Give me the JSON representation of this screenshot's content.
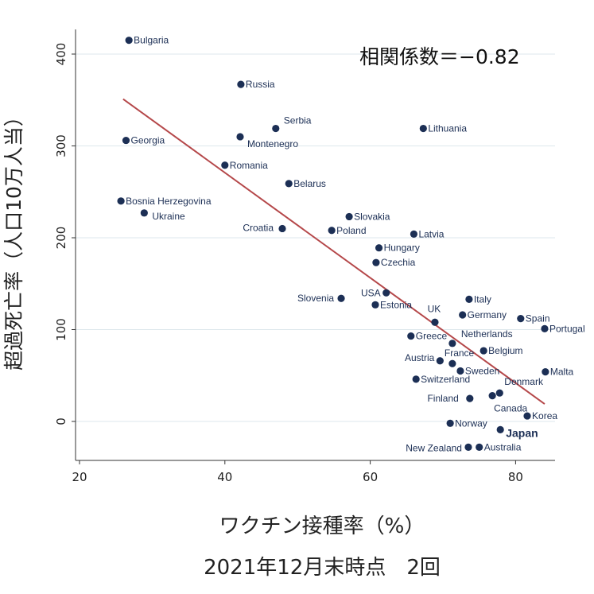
{
  "chart_data": {
    "type": "scatter",
    "annotation": "相関係数＝−0.82",
    "xlabel": "ワクチン接種率（%）",
    "xlabel_line2": "2021年12月末時点　2回",
    "ylabel": "超過死亡率（人口10万人当）",
    "xlim": [
      19,
      85.5
    ],
    "ylim": [
      -40,
      425
    ],
    "xticks": [
      20,
      40,
      60,
      80
    ],
    "yticks": [
      0,
      100,
      200,
      300,
      400
    ],
    "grid": true,
    "trend_line": {
      "x": [
        26,
        84
      ],
      "y": [
        351,
        19
      ],
      "color": "#b5484a"
    },
    "point_color": "#1c2f55",
    "points": [
      {
        "name": "Bulgaria",
        "x": 26.8,
        "y": 415
      },
      {
        "name": "Russia",
        "x": 42.2,
        "y": 367
      },
      {
        "name": "Serbia",
        "x": 47.0,
        "y": 319
      },
      {
        "name": "Lithuania",
        "x": 67.3,
        "y": 319
      },
      {
        "name": "Georgia",
        "x": 26.4,
        "y": 306
      },
      {
        "name": "Montenegro",
        "x": 42.1,
        "y": 310
      },
      {
        "name": "Romania",
        "x": 40.0,
        "y": 279
      },
      {
        "name": "Belarus",
        "x": 48.8,
        "y": 259
      },
      {
        "name": "Bosnia Herzegovina",
        "x": 25.7,
        "y": 240
      },
      {
        "name": "Ukraine",
        "x": 28.9,
        "y": 227
      },
      {
        "name": "Slovakia",
        "x": 57.1,
        "y": 223
      },
      {
        "name": "Croatia",
        "x": 47.9,
        "y": 210
      },
      {
        "name": "Poland",
        "x": 54.7,
        "y": 208
      },
      {
        "name": "Latvia",
        "x": 66.0,
        "y": 204
      },
      {
        "name": "Hungary",
        "x": 61.2,
        "y": 189
      },
      {
        "name": "Czechia",
        "x": 60.8,
        "y": 173
      },
      {
        "name": "USA",
        "x": 62.2,
        "y": 140
      },
      {
        "name": "Slovenia",
        "x": 56.0,
        "y": 134
      },
      {
        "name": "Italy",
        "x": 73.6,
        "y": 133
      },
      {
        "name": "Estonia",
        "x": 60.7,
        "y": 127
      },
      {
        "name": "UK",
        "x": 68.9,
        "y": 108
      },
      {
        "name": "Germany",
        "x": 72.7,
        "y": 116
      },
      {
        "name": "Spain",
        "x": 80.7,
        "y": 112
      },
      {
        "name": "Portugal",
        "x": 84.0,
        "y": 101
      },
      {
        "name": "Greece",
        "x": 65.6,
        "y": 93
      },
      {
        "name": "Netherlands",
        "x": 71.3,
        "y": 85
      },
      {
        "name": "Belgium",
        "x": 75.6,
        "y": 77
      },
      {
        "name": "Austria",
        "x": 69.6,
        "y": 66
      },
      {
        "name": "France",
        "x": 71.3,
        "y": 63
      },
      {
        "name": "Sweden",
        "x": 72.4,
        "y": 55
      },
      {
        "name": "Malta",
        "x": 84.1,
        "y": 54
      },
      {
        "name": "Switzerland",
        "x": 66.3,
        "y": 46
      },
      {
        "name": "Denmark",
        "x": 77.8,
        "y": 31
      },
      {
        "name": "Finland",
        "x": 73.7,
        "y": 25
      },
      {
        "name": "Canada",
        "x": 76.8,
        "y": 28
      },
      {
        "name": "Korea",
        "x": 81.6,
        "y": 6
      },
      {
        "name": "Norway",
        "x": 71.0,
        "y": -2
      },
      {
        "name": "Japan",
        "x": 77.9,
        "y": -9
      },
      {
        "name": "New Zealand",
        "x": 73.5,
        "y": -28
      },
      {
        "name": "Australia",
        "x": 75.0,
        "y": -28
      }
    ]
  }
}
